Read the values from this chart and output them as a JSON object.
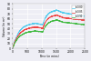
{
  "xlabel": "Time (in mins)",
  "ylabel": "Volume (in m³)",
  "xlim": [
    0,
    2500
  ],
  "ylim": [
    0,
    90
  ],
  "yticks": [
    0,
    10,
    20,
    30,
    40,
    50,
    60,
    70,
    80,
    90
  ],
  "xticks": [
    0,
    500,
    1000,
    1500,
    2000,
    2500
  ],
  "legend_labels": [
    "f=0.80",
    "f=0.85",
    "f=0.90"
  ],
  "line_colors": [
    "#55ccee",
    "#ee4444",
    "#44bb44"
  ],
  "background_color": "#eeeef5",
  "grid_color": "#ffffff"
}
